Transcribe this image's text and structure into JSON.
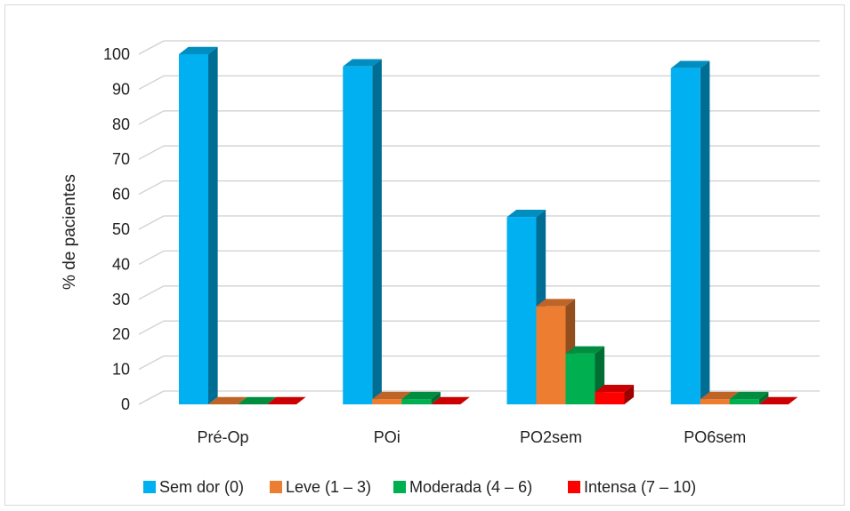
{
  "chart_data": {
    "type": "bar",
    "title": "",
    "xlabel": "",
    "ylabel": "% de pacientes",
    "ylim": [
      0,
      100
    ],
    "yticks": [
      0,
      10,
      20,
      30,
      40,
      50,
      60,
      70,
      80,
      90,
      100
    ],
    "grid": true,
    "legend_position": "bottom",
    "categories": [
      "Pré-Op",
      "POi",
      "PO2sem",
      "PO6sem"
    ],
    "series": [
      {
        "name": "Sem dor (0)",
        "color": "#00b0f0",
        "values": [
          100,
          96.5,
          53.5,
          96
        ]
      },
      {
        "name": "Leve (1 – 3)",
        "color": "#ed7d31",
        "values": [
          0,
          1.5,
          28,
          1.5
        ]
      },
      {
        "name": "Moderada (4 – 6)",
        "color": "#00b050",
        "values": [
          0,
          1.5,
          14.5,
          1.5
        ]
      },
      {
        "name": "Intensa (7 – 10)",
        "color": "#ff0000",
        "values": [
          0,
          0,
          3.5,
          0
        ]
      }
    ]
  }
}
